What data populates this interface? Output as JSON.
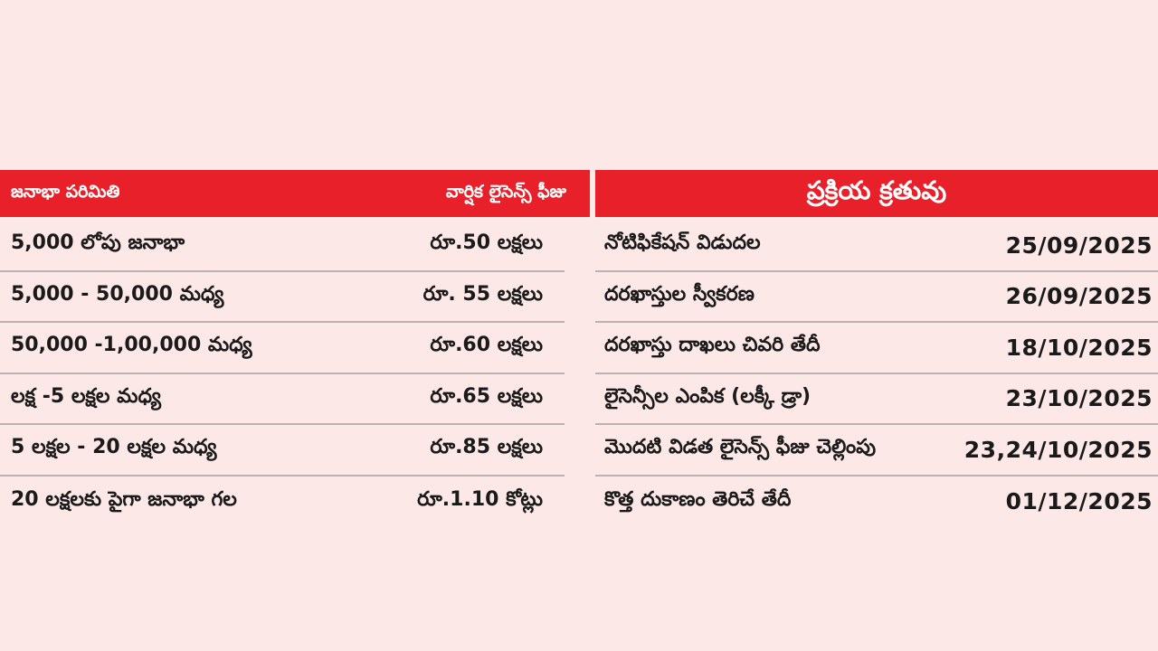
{
  "fee_table": {
    "header_left": "జనాభా పరిమితి",
    "header_right": "వార్షిక లైసెన్స్ ఫీజు",
    "rows": [
      {
        "population": "5,000 లోపు జనాభా",
        "fee": "రూ.50 లక్షలు"
      },
      {
        "population": "5,000 - 50,000 మధ్య",
        "fee": "రూ. 55 లక్షలు"
      },
      {
        "population": "50,000 -1,00,000 మధ్య",
        "fee": "రూ.60 లక్షలు"
      },
      {
        "population": "లక్ష -5 లక్షల మధ్య",
        "fee": "రూ.65 లక్షలు"
      },
      {
        "population": "5 లక్షల - 20 లక్షల మధ్య",
        "fee": "రూ.85 లక్షలు"
      },
      {
        "population": "20 లక్షలకు పైగా జనాభా గల",
        "fee": "రూ.1.10 కోట్లు"
      }
    ]
  },
  "process_table": {
    "header": "ప్రక్రియ క్రతువు",
    "rows": [
      {
        "step": "నోటిఫికేషన్ విడుదల",
        "date": "25/09/2025"
      },
      {
        "step": "దరఖాస్తుల స్వీకరణ",
        "date": "26/09/2025"
      },
      {
        "step": "దరఖాస్తు దాఖలు చివరి తేదీ",
        "date": "18/10/2025"
      },
      {
        "step": "లైసెన్సీల ఎంపిక (లక్కీ డ్రా)",
        "date": "23/10/2025"
      },
      {
        "step": "మొదటి విడత లైసెన్స్ ఫీజు చెల్లింపు",
        "date": "23,24/10/2025"
      },
      {
        "step": "కొత్త దుకాణం తెరిచే తేదీ",
        "date": "01/12/2025"
      }
    ]
  }
}
